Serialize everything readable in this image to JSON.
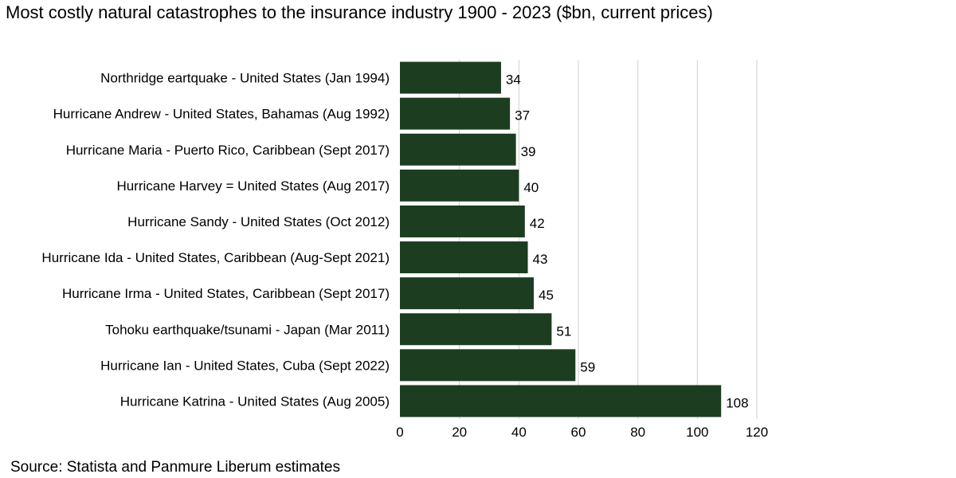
{
  "chart_data": {
    "type": "bar",
    "orientation": "horizontal",
    "title": "Most costly natural catastrophes to the insurance industry 1900 - 2023 ($bn, current prices)",
    "source": "Source: Statista and Panmure Liberum estimates",
    "categories": [
      "Northridge eartquake - United States (Jan 1994)",
      "Hurricane Andrew - United States, Bahamas (Aug 1992)",
      "Hurricane Maria - Puerto Rico, Caribbean (Sept 2017)",
      "Hurricane Harvey = United States (Aug 2017)",
      "Hurricane Sandy - United States (Oct 2012)",
      "Hurricane Ida - United States, Caribbean (Aug-Sept 2021)",
      "Hurricane Irma - United States, Caribbean (Sept 2017)",
      "Tohoku earthquake/tsunami - Japan (Mar 2011)",
      "Hurricane Ian - United States, Cuba (Sept 2022)",
      "Hurricane Katrina - United States (Aug 2005)"
    ],
    "values": [
      34,
      37,
      39,
      40,
      42,
      43,
      45,
      51,
      59,
      108
    ],
    "xlim": [
      0,
      120
    ],
    "xticks": [
      0,
      20,
      40,
      60,
      80,
      100,
      120
    ],
    "grid": true,
    "legend": "none",
    "bar_color": "#1d3d20",
    "grid_color": "#d0d0d0"
  }
}
